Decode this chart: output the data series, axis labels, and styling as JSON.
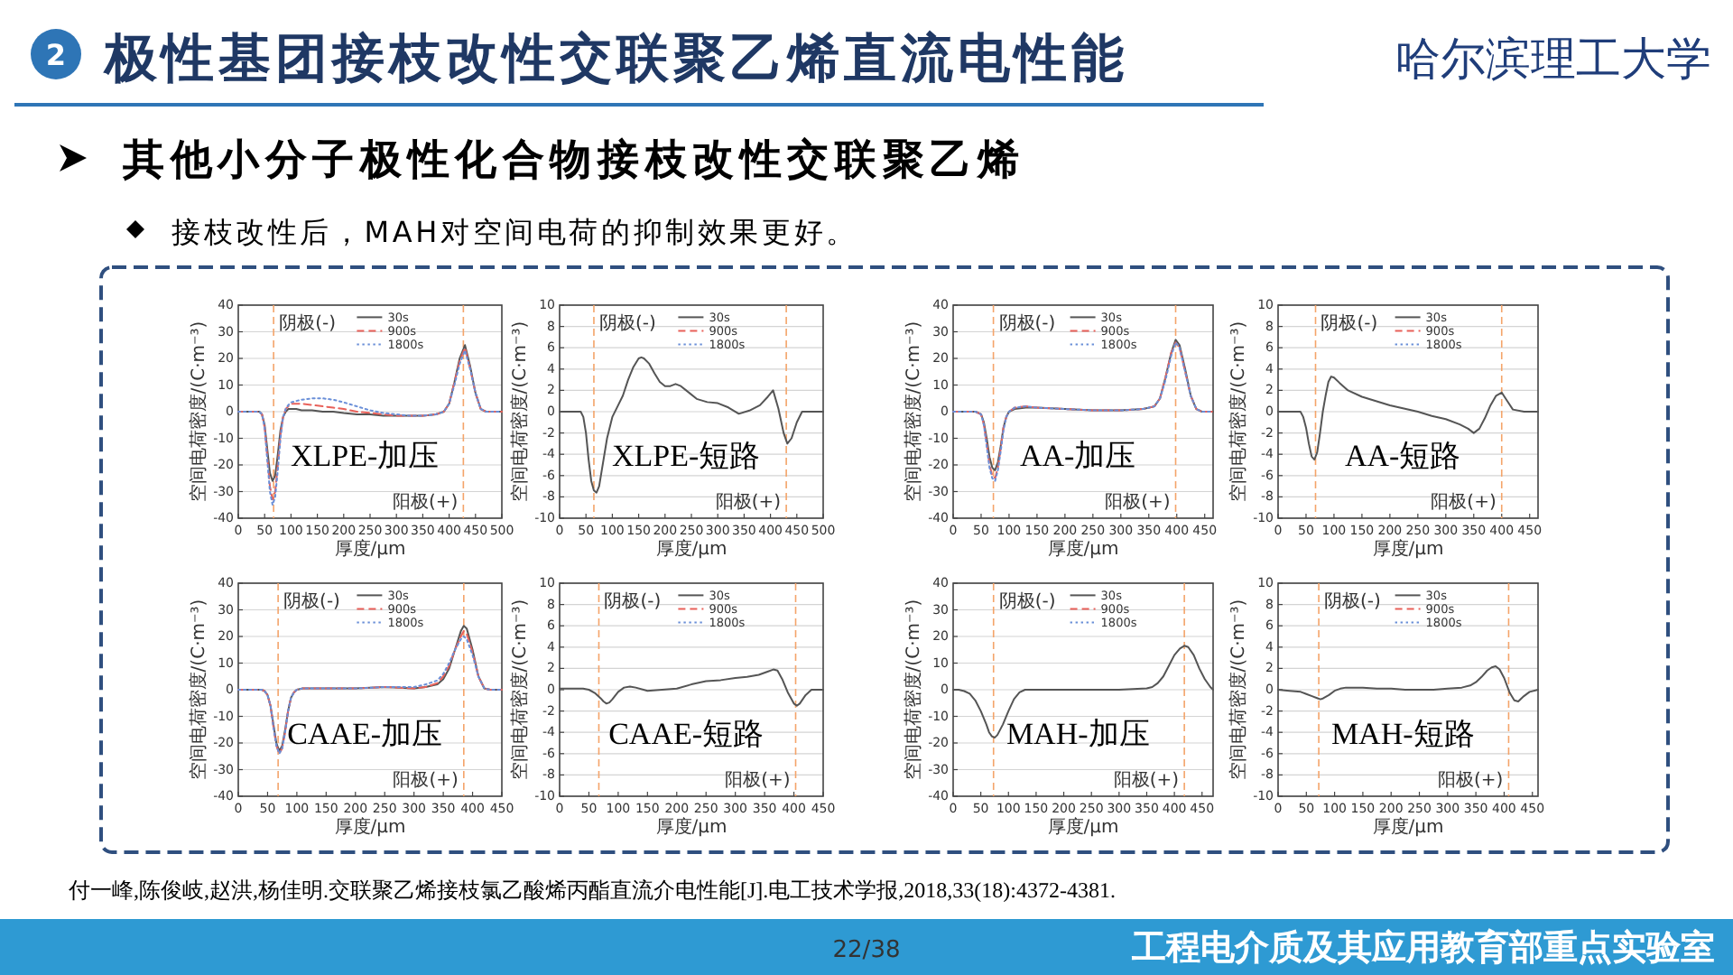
{
  "chart_data": [
    {
      "type": "other",
      "title": "极性基团接枝改性交联聚乙烯直流电性能",
      "subtitle": "其他小分子极性化合物接枝改性交联聚乙烯",
      "annotations": [
        "2",
        "哈尔滨理工大学",
        "接枝改性后，MAH对空间电荷的抑制效果更好。",
        "付一峰,陈俊岐,赵洪,杨佳明.交联聚乙烯接枝氯乙酸烯丙酯直流介电性能[J].电工技术学报,2018,33(18):4372-4381.",
        "22/38",
        "工程电介质及其应用教育部重点实验室"
      ]
    },
    {
      "type": "line",
      "title": "XLPE-加压",
      "xlabel": "厚度/μm",
      "ylabel": "空间电荷密度/(C·m⁻³)",
      "xlim": [
        0,
        500
      ],
      "xticks": [
        0,
        50,
        100,
        150,
        200,
        250,
        300,
        350,
        400,
        450,
        500
      ],
      "ylim": [
        -40,
        40
      ],
      "yticks": [
        -40,
        -30,
        -20,
        -10,
        0,
        10,
        20,
        30,
        40
      ],
      "grid": "y",
      "legend": "top",
      "x": [
        0,
        20,
        40,
        45,
        50,
        55,
        60,
        65,
        70,
        75,
        80,
        85,
        90,
        95,
        100,
        110,
        120,
        140,
        160,
        180,
        200,
        225,
        250,
        275,
        300,
        325,
        350,
        375,
        390,
        400,
        410,
        420,
        430,
        440,
        450,
        460,
        470,
        480,
        500
      ],
      "series": [
        {
          "name": "30s",
          "color": "#555555",
          "line_style": "solid",
          "values": [
            0,
            0,
            0,
            -1,
            -5,
            -14,
            -23,
            -26,
            -24,
            -16,
            -7,
            -2,
            0,
            1,
            1,
            1,
            0.5,
            0.5,
            0,
            0,
            -0.5,
            -1,
            -1,
            -1.5,
            -1.5,
            -1.5,
            -1.5,
            -1,
            0,
            3,
            11,
            20,
            25,
            17,
            7,
            1,
            0,
            0,
            0
          ]
        },
        {
          "name": "900s",
          "color": "#e8615a",
          "line_style": "dashed",
          "values": [
            0,
            0,
            0,
            -1,
            -6,
            -17,
            -28,
            -33,
            -30,
            -20,
            -9,
            -2,
            1,
            2,
            3,
            3,
            3,
            2.5,
            2,
            1.5,
            1,
            0,
            -0.5,
            -1,
            -1.5,
            -1.5,
            -1.5,
            -1,
            0,
            3,
            11,
            19,
            24,
            16,
            7,
            1,
            0,
            0,
            0
          ]
        },
        {
          "name": "1800s",
          "color": "#6a8fd8",
          "line_style": "dotted",
          "values": [
            0,
            0,
            0,
            -1,
            -6,
            -18,
            -30,
            -35,
            -32,
            -22,
            -10,
            -2,
            1,
            2.5,
            3.5,
            4,
            4.5,
            5,
            5,
            4.5,
            3.5,
            2,
            0.5,
            -0.5,
            -1,
            -1.5,
            -1.5,
            -1,
            0,
            3,
            10,
            18,
            23,
            16,
            7,
            1,
            0,
            0,
            0
          ]
        }
      ],
      "ref_lines": [
        {
          "axis": "x",
          "value": 67,
          "label": "阴极(-)",
          "color": "#f4a46a",
          "line_style": "dashed"
        },
        {
          "axis": "x",
          "value": 427,
          "label": "阳极(+)",
          "color": "#f4a46a",
          "line_style": "dashed"
        }
      ]
    },
    {
      "type": "line",
      "title": "XLPE-短路",
      "xlabel": "厚度/μm",
      "ylabel": "空间电荷密度/(C·m⁻³)",
      "xlim": [
        0,
        500
      ],
      "xticks": [
        0,
        50,
        100,
        150,
        200,
        250,
        300,
        350,
        400,
        450,
        500
      ],
      "ylim": [
        -10,
        10
      ],
      "yticks": [
        -10,
        -8,
        -6,
        -4,
        -2,
        0,
        2,
        4,
        6,
        8,
        10
      ],
      "grid": "y",
      "legend": "top",
      "x": [
        0,
        20,
        40,
        45,
        50,
        55,
        60,
        65,
        70,
        75,
        80,
        90,
        100,
        110,
        120,
        130,
        140,
        150,
        155,
        160,
        170,
        180,
        190,
        200,
        210,
        220,
        230,
        240,
        260,
        280,
        300,
        320,
        340,
        360,
        380,
        395,
        405,
        415,
        425,
        432,
        440,
        450,
        460,
        480,
        500
      ],
      "series": [
        {
          "name": "30s",
          "color": "#555555",
          "line_style": "solid",
          "values": [
            0,
            0,
            0,
            -0.5,
            -2,
            -4.5,
            -6.5,
            -7.4,
            -7.6,
            -7,
            -5.5,
            -2.5,
            -0.5,
            0.5,
            1.5,
            3,
            4.2,
            5,
            5.1,
            5,
            4.5,
            3.6,
            2.8,
            2.4,
            2.4,
            2.6,
            2.4,
            2,
            1.2,
            0.9,
            0.8,
            0.4,
            -0.2,
            0.1,
            0.6,
            1.4,
            2,
            0.3,
            -2,
            -3,
            -2.5,
            -1,
            0,
            0,
            0
          ]
        },
        {
          "name": "900s",
          "color": "#e8615a",
          "line_style": "dashed",
          "values": [
            null,
            null,
            null,
            null,
            null,
            null,
            null,
            null,
            null,
            null,
            null,
            null,
            null,
            null,
            null,
            null,
            null,
            null,
            null,
            null,
            null,
            null,
            null,
            null,
            null,
            null,
            null,
            null,
            null,
            null,
            null,
            null,
            null,
            null,
            null,
            null,
            null,
            null,
            null,
            null,
            null,
            null,
            null,
            null,
            null
          ]
        },
        {
          "name": "1800s",
          "color": "#6a8fd8",
          "line_style": "dotted",
          "values": [
            null,
            null,
            null,
            null,
            null,
            null,
            null,
            null,
            null,
            null,
            null,
            null,
            null,
            null,
            null,
            null,
            null,
            null,
            null,
            null,
            null,
            null,
            null,
            null,
            null,
            null,
            null,
            null,
            null,
            null,
            null,
            null,
            null,
            null,
            null,
            null,
            null,
            null,
            null,
            null,
            null,
            null,
            null,
            null,
            null
          ]
        }
      ],
      "ref_lines": [
        {
          "axis": "x",
          "value": 65,
          "label": "阴极(-)",
          "color": "#f4a46a",
          "line_style": "dashed"
        },
        {
          "axis": "x",
          "value": 430,
          "label": "阳极(+)",
          "color": "#f4a46a",
          "line_style": "dashed"
        }
      ]
    },
    {
      "type": "line",
      "title": "AA-加压",
      "xlabel": "厚度/μm",
      "ylabel": "空间电荷密度/(C·m⁻³)",
      "xlim": [
        0,
        465
      ],
      "xticks": [
        0,
        50,
        100,
        150,
        200,
        250,
        300,
        350,
        400,
        450
      ],
      "ylim": [
        -40,
        40
      ],
      "yticks": [
        -40,
        -30,
        -20,
        -10,
        0,
        10,
        20,
        30,
        40
      ],
      "grid": "y",
      "legend": "top",
      "x": [
        0,
        20,
        40,
        50,
        55,
        60,
        65,
        70,
        75,
        80,
        85,
        90,
        95,
        100,
        110,
        130,
        150,
        200,
        250,
        300,
        340,
        360,
        370,
        380,
        390,
        398,
        405,
        415,
        425,
        435,
        445,
        465
      ],
      "series": [
        {
          "name": "30s",
          "color": "#555555",
          "line_style": "solid",
          "values": [
            0,
            0,
            0,
            -1,
            -4,
            -10,
            -17,
            -21,
            -22,
            -19,
            -13,
            -6,
            -2,
            0,
            1,
            1.5,
            1.5,
            1,
            0.5,
            0.5,
            1,
            2,
            5,
            13,
            22,
            27,
            25,
            16,
            6,
            1,
            0,
            0
          ]
        },
        {
          "name": "900s",
          "color": "#e8615a",
          "line_style": "dashed",
          "values": [
            0,
            0,
            0,
            -1,
            -5,
            -12,
            -20,
            -24,
            -25,
            -21,
            -14,
            -6,
            -2,
            0,
            1.5,
            2,
            1.5,
            1,
            0.5,
            0.5,
            1,
            2,
            5,
            13,
            22,
            26,
            24,
            15,
            6,
            1,
            0,
            0
          ]
        },
        {
          "name": "1800s",
          "color": "#6a8fd8",
          "line_style": "dotted",
          "values": [
            0,
            0,
            0,
            -1,
            -5,
            -13,
            -21,
            -25,
            -26,
            -22,
            -15,
            -7,
            -2,
            0,
            1.5,
            2,
            1.5,
            1,
            0.5,
            0.5,
            1,
            2,
            5,
            12,
            21,
            26,
            24,
            15,
            6,
            1,
            0,
            0
          ]
        }
      ],
      "ref_lines": [
        {
          "axis": "x",
          "value": 72,
          "label": "阴极(-)",
          "color": "#f4a46a",
          "line_style": "dashed"
        },
        {
          "axis": "x",
          "value": 398,
          "label": "阳极(+)",
          "color": "#f4a46a",
          "line_style": "dashed"
        }
      ]
    },
    {
      "type": "line",
      "title": "AA-短路",
      "xlabel": "厚度/μm",
      "ylabel": "空间电荷密度/(C·m⁻³)",
      "xlim": [
        0,
        465
      ],
      "xticks": [
        0,
        50,
        100,
        150,
        200,
        250,
        300,
        350,
        400,
        450
      ],
      "ylim": [
        -10,
        10
      ],
      "yticks": [
        -10,
        -8,
        -6,
        -4,
        -2,
        0,
        2,
        4,
        6,
        8,
        10
      ],
      "grid": "y",
      "legend": "top",
      "x": [
        0,
        20,
        40,
        45,
        50,
        55,
        60,
        65,
        70,
        75,
        80,
        85,
        90,
        95,
        100,
        110,
        125,
        150,
        175,
        200,
        225,
        250,
        275,
        300,
        325,
        340,
        350,
        360,
        370,
        380,
        390,
        400,
        410,
        420,
        440,
        465
      ],
      "series": [
        {
          "name": "30s",
          "color": "#555555",
          "line_style": "solid",
          "values": [
            0,
            0,
            0,
            -0.5,
            -1.5,
            -3,
            -4.2,
            -4.5,
            -3.8,
            -2,
            0,
            1.5,
            2.8,
            3.3,
            3.2,
            2.7,
            2,
            1.4,
            1,
            0.6,
            0.3,
            0,
            -0.4,
            -0.7,
            -1.2,
            -1.6,
            -2,
            -1.6,
            -0.6,
            0.6,
            1.5,
            1.8,
            1,
            0.2,
            0,
            0
          ]
        },
        {
          "name": "900s",
          "color": "#e8615a",
          "line_style": "dashed",
          "values": [
            null,
            null,
            null,
            null,
            null,
            null,
            null,
            null,
            null,
            null,
            null,
            null,
            null,
            null,
            null,
            null,
            null,
            null,
            null,
            null,
            null,
            null,
            null,
            null,
            null,
            null,
            null,
            null,
            null,
            null,
            null,
            null,
            null,
            null,
            null,
            null
          ]
        },
        {
          "name": "1800s",
          "color": "#6a8fd8",
          "line_style": "dotted",
          "values": [
            null,
            null,
            null,
            null,
            null,
            null,
            null,
            null,
            null,
            null,
            null,
            null,
            null,
            null,
            null,
            null,
            null,
            null,
            null,
            null,
            null,
            null,
            null,
            null,
            null,
            null,
            null,
            null,
            null,
            null,
            null,
            null,
            null,
            null,
            null,
            null
          ]
        }
      ],
      "ref_lines": [
        {
          "axis": "x",
          "value": 67,
          "label": "阴极(-)",
          "color": "#f4a46a",
          "line_style": "dashed"
        },
        {
          "axis": "x",
          "value": 400,
          "label": "阳极(+)",
          "color": "#f4a46a",
          "line_style": "dashed"
        }
      ]
    },
    {
      "type": "line",
      "title": "CAAE-加压",
      "xlabel": "厚度/μm",
      "ylabel": "空间电荷密度/(C·m⁻³)",
      "xlim": [
        0,
        450
      ],
      "xticks": [
        0,
        50,
        100,
        150,
        200,
        250,
        300,
        350,
        400,
        450
      ],
      "ylim": [
        -40,
        40
      ],
      "yticks": [
        -40,
        -30,
        -20,
        -10,
        0,
        10,
        20,
        30,
        40
      ],
      "grid": "y",
      "legend": "top",
      "x": [
        0,
        20,
        40,
        45,
        50,
        55,
        60,
        65,
        70,
        75,
        80,
        85,
        90,
        95,
        100,
        110,
        130,
        150,
        200,
        250,
        300,
        320,
        340,
        350,
        360,
        370,
        380,
        385,
        390,
        400,
        410,
        420,
        430,
        450
      ],
      "series": [
        {
          "name": "30s",
          "color": "#555555",
          "line_style": "solid",
          "values": [
            0,
            0,
            0,
            -0.5,
            -2,
            -6,
            -13,
            -20,
            -23,
            -21,
            -15,
            -8,
            -3,
            -1,
            0,
            0.5,
            0.5,
            0.5,
            0.5,
            1,
            0.5,
            1,
            2,
            4,
            8,
            15,
            22,
            24,
            23,
            15,
            5,
            0.5,
            0,
            0
          ]
        },
        {
          "name": "900s",
          "color": "#e8615a",
          "line_style": "dashed",
          "values": [
            0,
            0,
            0,
            -0.5,
            -2,
            -6,
            -14,
            -21,
            -24,
            -22,
            -16,
            -8,
            -3,
            -1,
            0,
            0.5,
            0.5,
            0.5,
            0.5,
            1,
            0.5,
            1,
            2.5,
            5,
            9,
            15,
            20,
            22,
            21,
            14,
            5,
            0.5,
            0,
            0
          ]
        },
        {
          "name": "1800s",
          "color": "#6a8fd8",
          "line_style": "dotted",
          "values": [
            0,
            0,
            0,
            -0.5,
            -2,
            -6,
            -14,
            -21,
            -24,
            -22,
            -16,
            -8,
            -3,
            -1,
            0,
            0.5,
            0.5,
            0.5,
            0.5,
            1,
            1,
            2,
            3.5,
            6,
            10,
            15,
            19,
            20,
            19,
            13,
            5,
            0.5,
            0,
            0
          ]
        }
      ],
      "ref_lines": [
        {
          "axis": "x",
          "value": 68,
          "label": "阴极(-)",
          "color": "#f4a46a",
          "line_style": "dashed"
        },
        {
          "axis": "x",
          "value": 385,
          "label": "阳极(+)",
          "color": "#f4a46a",
          "line_style": "dashed"
        }
      ]
    },
    {
      "type": "line",
      "title": "CAAE-短路",
      "xlabel": "厚度/μm",
      "ylabel": "空间电荷密度/(C·m⁻³)",
      "xlim": [
        0,
        450
      ],
      "xticks": [
        0,
        50,
        100,
        150,
        200,
        250,
        300,
        350,
        400,
        450
      ],
      "ylim": [
        -10,
        10
      ],
      "yticks": [
        -10,
        -8,
        -6,
        -4,
        -2,
        0,
        2,
        4,
        6,
        8,
        10
      ],
      "grid": "y",
      "legend": "top",
      "x": [
        0,
        20,
        40,
        50,
        60,
        70,
        75,
        80,
        85,
        90,
        100,
        110,
        120,
        130,
        150,
        175,
        200,
        225,
        250,
        275,
        300,
        320,
        340,
        355,
        365,
        372,
        380,
        390,
        400,
        405,
        410,
        420,
        430,
        450
      ],
      "series": [
        {
          "name": "30s",
          "color": "#555555",
          "line_style": "solid",
          "values": [
            0.1,
            0.1,
            0.1,
            0,
            -0.3,
            -0.8,
            -1.1,
            -1.3,
            -1.2,
            -0.9,
            -0.2,
            0.2,
            0.3,
            0.2,
            -0.1,
            0,
            0.1,
            0.5,
            0.8,
            0.9,
            1.1,
            1.2,
            1.4,
            1.7,
            1.9,
            1.8,
            1,
            -0.3,
            -1.3,
            -1.5,
            -1.3,
            -0.5,
            0,
            0
          ]
        },
        {
          "name": "900s",
          "color": "#e8615a",
          "line_style": "dashed",
          "values": [
            null,
            null,
            null,
            null,
            null,
            null,
            null,
            null,
            null,
            null,
            null,
            null,
            null,
            null,
            null,
            null,
            null,
            null,
            null,
            null,
            null,
            null,
            null,
            null,
            null,
            null,
            null,
            null,
            null,
            null,
            null,
            null,
            null,
            null
          ]
        },
        {
          "name": "1800s",
          "color": "#6a8fd8",
          "line_style": "dotted",
          "values": [
            null,
            null,
            null,
            null,
            null,
            null,
            null,
            null,
            null,
            null,
            null,
            null,
            null,
            null,
            null,
            null,
            null,
            null,
            null,
            null,
            null,
            null,
            null,
            null,
            null,
            null,
            null,
            null,
            null,
            null,
            null,
            null,
            null,
            null
          ]
        }
      ],
      "ref_lines": [
        {
          "axis": "x",
          "value": 67,
          "label": "阴极(-)",
          "color": "#f4a46a",
          "line_style": "dashed"
        },
        {
          "axis": "x",
          "value": 403,
          "label": "阳极(+)",
          "color": "#f4a46a",
          "line_style": "dashed"
        }
      ]
    },
    {
      "type": "line",
      "title": "MAH-加压",
      "xlabel": "厚度/μm",
      "ylabel": "空间电荷密度/(C·m⁻³)",
      "xlim": [
        0,
        470
      ],
      "xticks": [
        0,
        50,
        100,
        150,
        200,
        250,
        300,
        350,
        400,
        450
      ],
      "ylim": [
        -40,
        40
      ],
      "yticks": [
        -40,
        -30,
        -20,
        -10,
        0,
        10,
        20,
        30,
        40
      ],
      "grid": "y",
      "legend": "top",
      "x": [
        0,
        10,
        20,
        30,
        40,
        50,
        60,
        65,
        70,
        75,
        80,
        90,
        100,
        110,
        120,
        130,
        150,
        200,
        250,
        300,
        350,
        360,
        370,
        380,
        390,
        400,
        410,
        418,
        425,
        435,
        445,
        455,
        465,
        470
      ],
      "series": [
        {
          "name": "30s",
          "color": "#555555",
          "line_style": "solid",
          "values": [
            0,
            0,
            -0.5,
            -1.5,
            -4,
            -8,
            -13,
            -16,
            -17.5,
            -18,
            -17,
            -13,
            -8,
            -3.5,
            -1,
            0,
            0,
            0,
            0,
            0,
            0.5,
            1,
            2.5,
            5,
            9,
            13,
            15.5,
            16.5,
            16,
            13,
            8,
            4,
            1,
            0
          ]
        },
        {
          "name": "900s",
          "color": "#e8615a",
          "line_style": "dashed",
          "values": [
            null,
            null,
            null,
            null,
            null,
            null,
            null,
            null,
            null,
            null,
            null,
            null,
            null,
            null,
            null,
            null,
            null,
            null,
            null,
            null,
            null,
            null,
            null,
            null,
            null,
            null,
            null,
            null,
            null,
            null,
            null,
            null,
            null,
            null
          ]
        },
        {
          "name": "1800s",
          "color": "#6a8fd8",
          "line_style": "dotted",
          "values": [
            null,
            null,
            null,
            null,
            null,
            null,
            null,
            null,
            null,
            null,
            null,
            null,
            null,
            null,
            null,
            null,
            null,
            null,
            null,
            null,
            null,
            null,
            null,
            null,
            null,
            null,
            null,
            null,
            null,
            null,
            null,
            null,
            null,
            null
          ]
        }
      ],
      "ref_lines": [
        {
          "axis": "x",
          "value": 73,
          "label": "阴极(-)",
          "color": "#f4a46a",
          "line_style": "dashed"
        },
        {
          "axis": "x",
          "value": 418,
          "label": "阳极(+)",
          "color": "#f4a46a",
          "line_style": "dashed"
        }
      ]
    },
    {
      "type": "line",
      "title": "MAH-短路",
      "xlabel": "厚度/μm",
      "ylabel": "空间电荷密度/(C·m⁻³)",
      "xlim": [
        0,
        460
      ],
      "xticks": [
        0,
        50,
        100,
        150,
        200,
        250,
        300,
        350,
        400,
        450
      ],
      "ylim": [
        -10,
        10
      ],
      "yticks": [
        -10,
        -8,
        -6,
        -4,
        -2,
        0,
        2,
        4,
        6,
        8,
        10
      ],
      "grid": "y",
      "legend": "top",
      "x": [
        0,
        20,
        40,
        50,
        60,
        70,
        75,
        80,
        90,
        100,
        110,
        120,
        150,
        175,
        200,
        225,
        250,
        275,
        300,
        325,
        340,
        350,
        360,
        370,
        378,
        385,
        392,
        400,
        410,
        418,
        425,
        435,
        445,
        460
      ],
      "series": [
        {
          "name": "30s",
          "color": "#555555",
          "line_style": "solid",
          "values": [
            0,
            -0.1,
            -0.2,
            -0.4,
            -0.6,
            -0.8,
            -0.9,
            -0.8,
            -0.5,
            -0.1,
            0.1,
            0.2,
            0.2,
            0.1,
            0.1,
            0,
            0,
            0,
            0.1,
            0.2,
            0.4,
            0.7,
            1.2,
            1.8,
            2.1,
            2.2,
            1.9,
            1.1,
            -0.3,
            -1,
            -1.1,
            -0.6,
            -0.2,
            0
          ]
        },
        {
          "name": "900s",
          "color": "#e8615a",
          "line_style": "dashed",
          "values": [
            null,
            null,
            null,
            null,
            null,
            null,
            null,
            null,
            null,
            null,
            null,
            null,
            null,
            null,
            null,
            null,
            null,
            null,
            null,
            null,
            null,
            null,
            null,
            null,
            null,
            null,
            null,
            null,
            null,
            null,
            null,
            null,
            null,
            null
          ]
        },
        {
          "name": "1800s",
          "color": "#6a8fd8",
          "line_style": "dotted",
          "values": [
            null,
            null,
            null,
            null,
            null,
            null,
            null,
            null,
            null,
            null,
            null,
            null,
            null,
            null,
            null,
            null,
            null,
            null,
            null,
            null,
            null,
            null,
            null,
            null,
            null,
            null,
            null,
            null,
            null,
            null,
            null,
            null,
            null,
            null
          ]
        }
      ],
      "ref_lines": [
        {
          "axis": "x",
          "value": 72,
          "label": "阴极(-)",
          "color": "#f4a46a",
          "line_style": "dashed"
        },
        {
          "axis": "x",
          "value": 408,
          "label": "阳极(+)",
          "color": "#f4a46a",
          "line_style": "dashed"
        }
      ]
    }
  ]
}
